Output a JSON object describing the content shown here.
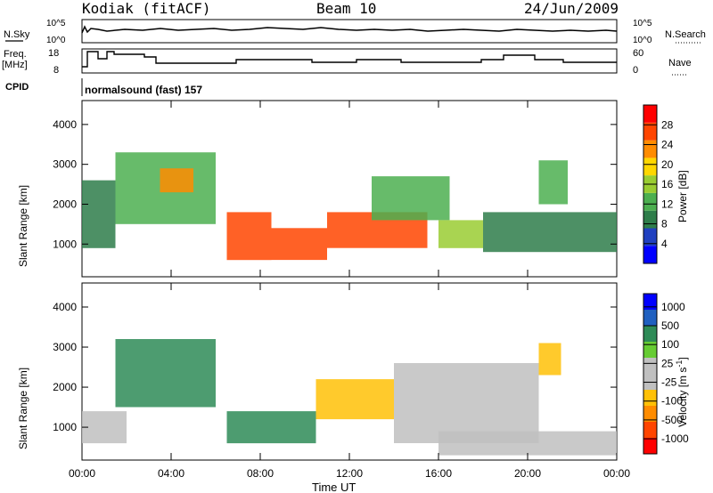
{
  "header": {
    "station": "Kodiak (fitACF)",
    "beam": "Beam 10",
    "date": "24/Jun/2009"
  },
  "panels": {
    "nsky_label": "N.Sky",
    "nsky_ticks": [
      "10^5",
      "10^0"
    ],
    "nsearch_label": "N.Search",
    "freq_label_line1": "Freq.",
    "freq_label_line2": "[MHz]",
    "freq_ticks": [
      "18",
      "8"
    ],
    "nave_label": "Nave",
    "nave_ticks": [
      "60",
      "0"
    ],
    "cpid_label": "CPID",
    "cpid_value": "normalsound (fast) 157"
  },
  "colors": {
    "power_scale": [
      "#0000ff",
      "#2040c0",
      "#2e7d4a",
      "#4caf50",
      "#9acd32",
      "#ffd700",
      "#ff8c00",
      "#ff4500",
      "#ff0000"
    ],
    "velocity_scale": [
      "#ff0000",
      "#ff4500",
      "#ff8c00",
      "#ffc107",
      "#c0c0c0",
      "#c0c0c0",
      "#66cc33",
      "#2e8b57",
      "#2060c0",
      "#0000ff"
    ]
  },
  "chart_data": [
    {
      "type": "heatmap",
      "name": "power",
      "xlabel": "Time UT",
      "ylabel": "Slant Range [km]",
      "x_ticks": [
        "00:00",
        "04:00",
        "08:00",
        "12:00",
        "16:00",
        "20:00",
        "00:00"
      ],
      "y_ticks": [
        1000,
        2000,
        3000,
        4000
      ],
      "ylim": [
        180,
        4600
      ],
      "colorbar_label": "Power [dB]",
      "colorbar_ticks": [
        4,
        8,
        12,
        16,
        20,
        24,
        28
      ],
      "regions": [
        {
          "t0": 0.0,
          "t1": 1.5,
          "r0": 900,
          "r1": 2600,
          "v": 9
        },
        {
          "t0": 1.5,
          "t1": 6.0,
          "r0": 1500,
          "r1": 3300,
          "v": 12
        },
        {
          "t0": 3.5,
          "t1": 5.0,
          "r0": 2300,
          "r1": 2900,
          "v": 24
        },
        {
          "t0": 6.5,
          "t1": 8.5,
          "r0": 600,
          "r1": 1800,
          "v": 27
        },
        {
          "t0": 8.5,
          "t1": 11.0,
          "r0": 600,
          "r1": 1400,
          "v": 28
        },
        {
          "t0": 11.0,
          "t1": 15.5,
          "r0": 900,
          "r1": 1800,
          "v": 25
        },
        {
          "t0": 13.0,
          "t1": 16.5,
          "r0": 1600,
          "r1": 2700,
          "v": 14
        },
        {
          "t0": 16.0,
          "t1": 18.0,
          "r0": 900,
          "r1": 1600,
          "v": 16
        },
        {
          "t0": 18.0,
          "t1": 24.0,
          "r0": 800,
          "r1": 1800,
          "v": 10
        },
        {
          "t0": 20.5,
          "t1": 21.8,
          "r0": 2000,
          "r1": 3100,
          "v": 14
        }
      ]
    },
    {
      "type": "heatmap",
      "name": "velocity",
      "xlabel": "Time UT",
      "ylabel": "Slant Range [km]",
      "x_ticks": [
        "00:00",
        "04:00",
        "08:00",
        "12:00",
        "16:00",
        "20:00",
        "00:00"
      ],
      "y_ticks": [
        1000,
        2000,
        3000,
        4000
      ],
      "ylim": [
        180,
        4600
      ],
      "colorbar_label": "Velocity [m s^-1]",
      "colorbar_ticks": [
        "1000",
        "500",
        "100",
        "25",
        "-25",
        "-100",
        "-500",
        "-1000"
      ],
      "regions": [
        {
          "t0": 0.0,
          "t1": 2.0,
          "r0": 600,
          "r1": 1400,
          "v": 0
        },
        {
          "t0": 1.5,
          "t1": 6.0,
          "r0": 1500,
          "r1": 3200,
          "v": 150
        },
        {
          "t0": 6.5,
          "t1": 10.5,
          "r0": 600,
          "r1": 1400,
          "v": 200
        },
        {
          "t0": 10.5,
          "t1": 14.0,
          "r0": 1200,
          "r1": 2200,
          "v": -150
        },
        {
          "t0": 14.0,
          "t1": 20.5,
          "r0": 600,
          "r1": 2600,
          "v": 0
        },
        {
          "t0": 20.5,
          "t1": 21.5,
          "r0": 2300,
          "r1": 3100,
          "v": -300
        },
        {
          "t0": 16.0,
          "t1": 24.0,
          "r0": 300,
          "r1": 900,
          "v": 0
        }
      ]
    }
  ]
}
